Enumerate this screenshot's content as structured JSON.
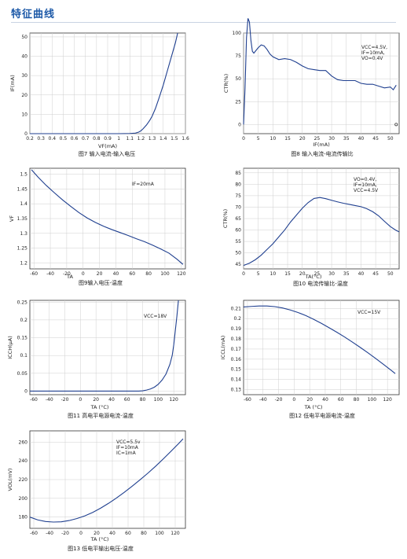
{
  "page": {
    "title": "特征曲线"
  },
  "colors": {
    "title": "#1e5aa8",
    "curve": "#1f3f8f",
    "grid": "#cfcfcf"
  },
  "chart_data": [
    {
      "id": "fig7",
      "type": "line",
      "caption": "图7 输入电流-输入电压",
      "xlabel": "VF(mA)",
      "ylabel": "IF(mA)",
      "xlim": [
        0.2,
        1.6
      ],
      "ylim": [
        0,
        52
      ],
      "xticks": [
        0.2,
        0.3,
        0.4,
        0.5,
        0.6,
        0.7,
        0.8,
        0.9,
        1.0,
        1.1,
        1.2,
        1.3,
        1.4,
        1.5,
        1.6
      ],
      "yticks": [
        0,
        10,
        20,
        30,
        40,
        50
      ],
      "tick_decimals_x": 1,
      "annotations": [],
      "series": [
        {
          "x": [
            0.2,
            0.6,
            1.0,
            1.1,
            1.15,
            1.18,
            1.2,
            1.22,
            1.25,
            1.28,
            1.3,
            1.33,
            1.36,
            1.4,
            1.44,
            1.48,
            1.51,
            1.53
          ],
          "y": [
            0,
            0,
            0,
            0.1,
            0.3,
            0.8,
            1.5,
            2.6,
            4.5,
            7,
            9,
            13,
            18,
            25,
            33,
            41,
            47,
            52
          ]
        }
      ]
    },
    {
      "id": "fig8",
      "type": "line",
      "caption": "图8 输入电流-电流传输比",
      "xlabel": "IF(mA)",
      "ylabel": "CTR(%)",
      "xlim": [
        0,
        53
      ],
      "ylim": [
        -10,
        100
      ],
      "xticks": [
        0,
        5,
        10,
        15,
        20,
        25,
        30,
        35,
        40,
        45,
        50
      ],
      "yticks": [
        0,
        25,
        50,
        75,
        100
      ],
      "tick_decimals_x": 0,
      "annotations": [
        "VCC=4.5V,",
        "IF=10mA,",
        "VO=0.4V"
      ],
      "series": [
        {
          "x": [
            0,
            0.5,
            1,
            1.5,
            2,
            2.5,
            3,
            3.5,
            4,
            5,
            6,
            7,
            8,
            9,
            10,
            12,
            14,
            16,
            18,
            20,
            22,
            24,
            26,
            28,
            30,
            32,
            34,
            36,
            38,
            40,
            42,
            44,
            46,
            48,
            50,
            51,
            52
          ],
          "y": [
            0,
            40,
            95,
            116,
            112,
            92,
            80,
            78,
            80,
            84,
            87,
            86,
            82,
            77,
            74,
            71,
            72,
            71,
            68,
            64,
            61,
            60,
            59,
            59,
            53,
            49,
            48,
            48,
            48,
            45,
            44,
            44,
            42,
            40,
            41,
            38,
            43
          ]
        }
      ]
    },
    {
      "id": "fig9",
      "type": "line",
      "caption": "图9输入电压-温度",
      "xlabel": "TA",
      "ylabel": "VF",
      "xlim": [
        -65,
        125
      ],
      "ylim": [
        1.18,
        1.52
      ],
      "xticks": [
        -60,
        -40,
        -20,
        0,
        20,
        40,
        60,
        80,
        100,
        120
      ],
      "yticks": [
        1.2,
        1.25,
        1.3,
        1.35,
        1.4,
        1.45,
        1.5
      ],
      "tick_decimals_x": 0,
      "annotations": [
        "IF=20mA"
      ],
      "series": [
        {
          "x": [
            -63,
            -55,
            -45,
            -35,
            -25,
            -15,
            -5,
            5,
            15,
            25,
            35,
            45,
            55,
            65,
            75,
            85,
            95,
            105,
            115,
            122
          ],
          "y": [
            1.515,
            1.49,
            1.462,
            1.437,
            1.413,
            1.391,
            1.37,
            1.352,
            1.337,
            1.324,
            1.313,
            1.303,
            1.293,
            1.282,
            1.272,
            1.26,
            1.247,
            1.233,
            1.212,
            1.195
          ]
        }
      ]
    },
    {
      "id": "fig10",
      "type": "line",
      "caption": "图10 电流传输比-温度",
      "xlabel": "TA(°C)",
      "ylabel": "CTR(%)",
      "xlim": [
        0,
        53
      ],
      "ylim": [
        43,
        87
      ],
      "xticks": [
        0,
        5,
        10,
        15,
        20,
        25,
        30,
        35,
        40,
        45,
        50
      ],
      "yticks": [
        45,
        50,
        55,
        60,
        65,
        70,
        75,
        80,
        85
      ],
      "tick_decimals_x": 0,
      "annotations": [
        "VO=0.4V,",
        "IF=10mA,",
        "VCC=4.5V"
      ],
      "series": [
        {
          "x": [
            0,
            2,
            4,
            6,
            8,
            10,
            12,
            14,
            16,
            18,
            20,
            22,
            24,
            26,
            28,
            30,
            32,
            34,
            36,
            38,
            40,
            42,
            44,
            46,
            48,
            50,
            52,
            53
          ],
          "y": [
            44.5,
            45.5,
            47,
            49,
            51.5,
            54,
            57,
            60,
            63.5,
            66.5,
            69.5,
            72,
            73.8,
            74.2,
            73.7,
            73,
            72.3,
            71.7,
            71.2,
            70.7,
            70.2,
            69.3,
            68,
            66.2,
            63.8,
            61.5,
            59.8,
            59.2
          ]
        }
      ]
    },
    {
      "id": "fig11",
      "type": "line",
      "caption": "图11 高电平电源电流-温度",
      "xlabel": "TA (°C)",
      "ylabel": "ICCH(μA)",
      "xlim": [
        -65,
        135
      ],
      "ylim": [
        -0.01,
        0.255
      ],
      "xticks": [
        -60,
        -40,
        -20,
        0,
        20,
        40,
        60,
        80,
        100,
        120
      ],
      "yticks": [
        0,
        0.05,
        0.1,
        0.15,
        0.2,
        0.25
      ],
      "tick_decimals_x": 0,
      "annotations": [
        "VCC=18V"
      ],
      "series": [
        {
          "x": [
            -65,
            60,
            75,
            80,
            85,
            90,
            95,
            100,
            105,
            110,
            115,
            118,
            120,
            122,
            124,
            126
          ],
          "y": [
            0,
            0,
            0,
            0.001,
            0.003,
            0.006,
            0.011,
            0.019,
            0.031,
            0.048,
            0.075,
            0.1,
            0.13,
            0.17,
            0.21,
            0.255
          ]
        }
      ]
    },
    {
      "id": "fig12",
      "type": "line",
      "caption": "图12 低电平电源电流-温度",
      "xlabel": "TA (°C)",
      "ylabel": "ICCL(mA)",
      "xlim": [
        -65,
        135
      ],
      "ylim": [
        0.125,
        0.218
      ],
      "xticks": [
        -60,
        -40,
        -20,
        0,
        20,
        40,
        60,
        80,
        100,
        120
      ],
      "yticks": [
        0.13,
        0.14,
        0.15,
        0.16,
        0.17,
        0.18,
        0.19,
        0.2,
        0.21
      ],
      "tick_decimals_x": 0,
      "annotations": [
        "VCC=15V"
      ],
      "series": [
        {
          "x": [
            -65,
            -55,
            -45,
            -35,
            -25,
            -15,
            -5,
            5,
            15,
            25,
            35,
            45,
            55,
            65,
            75,
            85,
            95,
            105,
            115,
            125,
            130
          ],
          "y": [
            0.2115,
            0.212,
            0.2124,
            0.2124,
            0.2118,
            0.2105,
            0.2085,
            0.206,
            0.203,
            0.1993,
            0.1953,
            0.191,
            0.1865,
            0.1818,
            0.1768,
            0.1716,
            0.1662,
            0.1606,
            0.1548,
            0.1489,
            0.1458
          ]
        }
      ]
    },
    {
      "id": "fig13",
      "type": "line",
      "caption": "图13 低电平输出电压-温度",
      "xlabel": "TA (°C)",
      "ylabel": "VOL(mV)",
      "xlim": [
        -65,
        133
      ],
      "ylim": [
        168,
        272
      ],
      "xticks": [
        -60,
        -40,
        -20,
        0,
        20,
        40,
        60,
        80,
        100,
        120
      ],
      "yticks": [
        180,
        200,
        220,
        240,
        260
      ],
      "tick_decimals_x": 0,
      "annotations": [
        "VCC=5.5v",
        "IF=10mA",
        "IC=1mA"
      ],
      "series": [
        {
          "x": [
            -65,
            -55,
            -45,
            -35,
            -25,
            -15,
            -5,
            5,
            15,
            25,
            35,
            45,
            55,
            65,
            75,
            85,
            95,
            105,
            115,
            125,
            130
          ],
          "y": [
            180,
            177,
            175.3,
            174.7,
            175,
            176.3,
            178.5,
            181.3,
            185,
            189.5,
            194.6,
            200.2,
            206.3,
            212.8,
            219.6,
            226.7,
            234.2,
            242.2,
            250.5,
            259,
            263.5
          ]
        }
      ]
    }
  ]
}
